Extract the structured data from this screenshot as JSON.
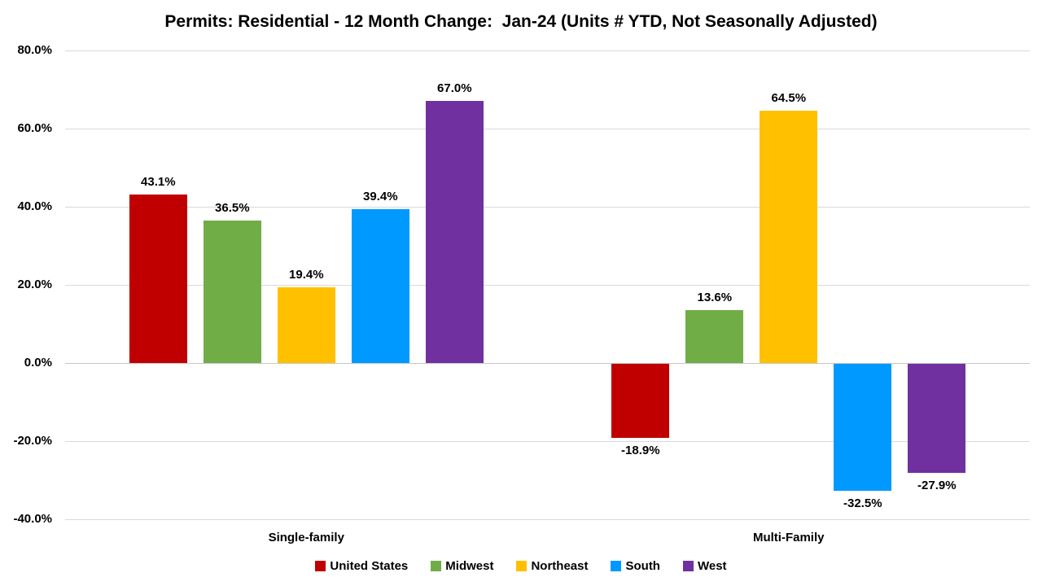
{
  "chart_data": {
    "type": "bar",
    "title": "Permits: Residential - 12 Month Change:  Jan-24 (Units # YTD, Not Seasonally Adjusted)",
    "categories": [
      "Single-family",
      "Multi-Family"
    ],
    "series": [
      {
        "name": "United States",
        "color": "#C00000",
        "values": [
          43.1,
          -18.9
        ]
      },
      {
        "name": "Midwest",
        "color": "#70AD47",
        "values": [
          36.5,
          13.6
        ]
      },
      {
        "name": "Northeast",
        "color": "#FFC000",
        "values": [
          19.4,
          64.5
        ]
      },
      {
        "name": "South",
        "color": "#0099FF",
        "values": [
          39.4,
          -32.5
        ]
      },
      {
        "name": "West",
        "color": "#7030A0",
        "values": [
          67.0,
          -27.9
        ]
      }
    ],
    "data_labels": {
      "Single-family": [
        "43.1%",
        "36.5%",
        "19.4%",
        "39.4%",
        "67.0%"
      ],
      "Multi-Family": [
        "-18.9%",
        "13.6%",
        "64.5%",
        "-32.5%",
        "-27.9%"
      ]
    },
    "ylim": [
      -40,
      80
    ],
    "y_ticks": [
      {
        "value": 80,
        "label": "80.0%"
      },
      {
        "value": 60,
        "label": "60.0%"
      },
      {
        "value": 40,
        "label": "40.0%"
      },
      {
        "value": 20,
        "label": "20.0%"
      },
      {
        "value": 0,
        "label": "0.0%"
      },
      {
        "value": -20,
        "label": "-20.0%"
      },
      {
        "value": -40,
        "label": "-40.0%"
      }
    ],
    "grid": true,
    "legend_position": "bottom",
    "background_color": "#FFFFFF",
    "gridline_color": "#D9D9D9",
    "axis_line_color": "#C6C6C6",
    "text_color": "#000000"
  }
}
